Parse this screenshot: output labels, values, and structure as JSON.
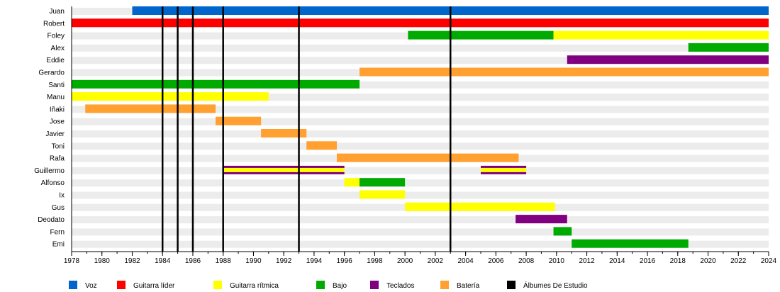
{
  "chart_data": {
    "type": "timeline",
    "xlim": [
      1978,
      2024
    ],
    "x_ticks": [
      1978,
      1980,
      1982,
      1984,
      1986,
      1988,
      1990,
      1992,
      1994,
      1996,
      1998,
      2000,
      2002,
      2004,
      2006,
      2008,
      2010,
      2012,
      2014,
      2016,
      2018,
      2020,
      2022,
      2024
    ],
    "roles": [
      {
        "key": "voz",
        "label": "Voz",
        "color": "#0066cc"
      },
      {
        "key": "guitarra_lider",
        "label": "Guitarra líder",
        "color": "#ff0000"
      },
      {
        "key": "guitarra_ritmica",
        "label": "Guitarra rítmica",
        "color": "#ffff00"
      },
      {
        "key": "bajo",
        "label": "Bajo",
        "color": "#00aa00"
      },
      {
        "key": "teclados",
        "label": "Teclados",
        "color": "#800080"
      },
      {
        "key": "bateria",
        "label": "Batería",
        "color": "#ffa030"
      },
      {
        "key": "albumes",
        "label": "Álbumes De Estudio",
        "color": "#000000"
      }
    ],
    "members": [
      {
        "name": "Juan",
        "periods": [
          {
            "role": "voz",
            "start": 1982,
            "end": 2024
          }
        ]
      },
      {
        "name": "Robert",
        "periods": [
          {
            "role": "guitarra_lider",
            "start": 1978,
            "end": 2024
          }
        ]
      },
      {
        "name": "Foley",
        "periods": [
          {
            "role": "bajo",
            "start": 2000.2,
            "end": 2009.8
          },
          {
            "role": "guitarra_ritmica",
            "start": 2009.8,
            "end": 2024
          }
        ]
      },
      {
        "name": "Alex",
        "periods": [
          {
            "role": "bajo",
            "start": 2018.7,
            "end": 2024
          }
        ]
      },
      {
        "name": "Eddie",
        "periods": [
          {
            "role": "teclados",
            "start": 2010.7,
            "end": 2024
          }
        ]
      },
      {
        "name": "Gerardo",
        "periods": [
          {
            "role": "bateria",
            "start": 1997,
            "end": 2024
          }
        ]
      },
      {
        "name": "Santi",
        "periods": [
          {
            "role": "bajo",
            "start": 1978,
            "end": 1997
          }
        ]
      },
      {
        "name": "Manu",
        "periods": [
          {
            "role": "guitarra_ritmica",
            "start": 1978,
            "end": 1991
          }
        ]
      },
      {
        "name": "Iñaki",
        "periods": [
          {
            "role": "bateria",
            "start": 1978.9,
            "end": 1987.5
          }
        ]
      },
      {
        "name": "Jose",
        "periods": [
          {
            "role": "bateria",
            "start": 1987.5,
            "end": 1990.5
          }
        ]
      },
      {
        "name": "Javier",
        "periods": [
          {
            "role": "bateria",
            "start": 1990.5,
            "end": 1993.5
          }
        ]
      },
      {
        "name": "Toni",
        "periods": [
          {
            "role": "bateria",
            "start": 1993.5,
            "end": 1995.5
          }
        ]
      },
      {
        "name": "Rafa",
        "periods": [
          {
            "role": "bateria",
            "start": 1995.5,
            "end": 2007.5
          }
        ]
      },
      {
        "name": "Guillermo",
        "periods": [
          {
            "role": "guitarra_ritmica",
            "secondary": "teclados",
            "start": 1988,
            "end": 1996
          },
          {
            "role": "guitarra_ritmica",
            "secondary": "teclados",
            "start": 2005,
            "end": 2008
          }
        ]
      },
      {
        "name": "Alfonso",
        "periods": [
          {
            "role": "guitarra_ritmica",
            "start": 1996,
            "end": 1997
          },
          {
            "role": "bajo",
            "start": 1997,
            "end": 2000
          }
        ]
      },
      {
        "name": "Ix",
        "periods": [
          {
            "role": "guitarra_ritmica",
            "start": 1997,
            "end": 2000
          }
        ]
      },
      {
        "name": "Gus",
        "periods": [
          {
            "role": "guitarra_ritmica",
            "start": 2000,
            "end": 2009.9
          }
        ]
      },
      {
        "name": "Deodato",
        "periods": [
          {
            "role": "teclados",
            "start": 2007.3,
            "end": 2010.7
          }
        ]
      },
      {
        "name": "Fern",
        "periods": [
          {
            "role": "bajo",
            "start": 2009.8,
            "end": 2011
          }
        ]
      },
      {
        "name": "Emi",
        "periods": [
          {
            "role": "bajo",
            "start": 2011,
            "end": 2018.7
          }
        ]
      }
    ],
    "album_years": [
      1984,
      1985,
      1986,
      1988,
      1993,
      2003
    ]
  }
}
